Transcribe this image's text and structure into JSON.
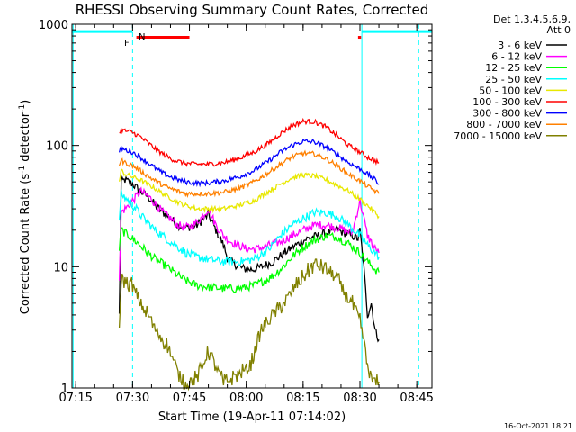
{
  "chart_data": {
    "type": "line",
    "title": "RHESSI Observing Summary Count Rates, Corrected",
    "xlabel": "Start Time (19-Apr-11 07:14:02)",
    "ylabel": "Corrected Count Rate (s⁻¹ detector⁻¹)",
    "ylabel_main": "Corrected Count Rate (s",
    "ylabel_sup1": "-1",
    "ylabel_mid": " detector",
    "ylabel_sup2": "-1",
    "ylabel_end": ")",
    "x_range_minutes": [
      0,
      95
    ],
    "y_scale": "log",
    "ylim": [
      1,
      1000
    ],
    "x_ticks": [
      {
        "label": "07:15",
        "t": 1
      },
      {
        "label": "07:30",
        "t": 16
      },
      {
        "label": "07:45",
        "t": 31
      },
      {
        "label": "08:00",
        "t": 46
      },
      {
        "label": "08:15",
        "t": 61
      },
      {
        "label": "08:30",
        "t": 76
      },
      {
        "label": "08:45",
        "t": 91
      }
    ],
    "y_ticks": [
      {
        "label": "1",
        "v": 1
      },
      {
        "label": "10",
        "v": 10
      },
      {
        "label": "100",
        "v": 100
      },
      {
        "label": "1000",
        "v": 1000
      }
    ],
    "legend_title": [
      "Det 1,3,4,5,6,9,",
      "Att 0"
    ],
    "legend_position": "right",
    "series": [
      {
        "name": "3 - 6 keV",
        "color": "#000000",
        "line_color": "#000000",
        "x": [
          12.5,
          13,
          14,
          15,
          16,
          17,
          18,
          19,
          20,
          21,
          22,
          24,
          26,
          28,
          30,
          33,
          36,
          38,
          40,
          41,
          42,
          44,
          46,
          48,
          50,
          53,
          56,
          59,
          62,
          65,
          67,
          70,
          72,
          74,
          75.5,
          76,
          77,
          78,
          79,
          80,
          81
        ],
        "y": [
          4,
          50,
          52,
          50,
          48,
          45,
          42,
          40,
          38,
          35,
          32,
          28,
          25,
          22,
          21,
          22,
          27,
          20,
          15,
          12,
          11,
          10,
          9.5,
          9.5,
          10,
          11,
          13,
          15,
          17,
          18,
          19,
          20,
          19,
          18,
          17,
          20,
          10,
          4,
          5,
          3,
          2.5
        ]
      },
      {
        "name": "6 - 12 keV",
        "color": "#ff00ff",
        "line_color": "#ff00ff",
        "x": [
          12.5,
          13,
          14,
          15,
          16,
          17,
          18,
          19,
          20,
          21,
          22,
          24,
          26,
          28,
          30,
          32,
          34,
          36,
          38,
          40,
          42,
          44,
          46,
          49,
          52,
          55,
          58,
          61,
          64,
          67,
          70,
          72,
          74,
          76,
          78,
          80,
          81
        ],
        "y": [
          8,
          28,
          30,
          32,
          35,
          38,
          42,
          40,
          38,
          36,
          33,
          28,
          25,
          22,
          21,
          22,
          25,
          30,
          22,
          18,
          16,
          15,
          14,
          14,
          15,
          16,
          18,
          20,
          22,
          22,
          21,
          20,
          19,
          35,
          18,
          14,
          13
        ]
      },
      {
        "name": "12 - 25 keV",
        "color": "#00ff00",
        "line_color": "#00ff00",
        "x": [
          12.5,
          13,
          14,
          15,
          16,
          17,
          18,
          19,
          20,
          22,
          24,
          26,
          28,
          30,
          33,
          36,
          40,
          44,
          48,
          52,
          55,
          58,
          61,
          64,
          67,
          70,
          73,
          76,
          78,
          80,
          81
        ],
        "y": [
          14,
          20,
          19,
          18,
          17,
          16,
          15,
          14,
          13,
          11.5,
          10.5,
          9.5,
          8.5,
          7.7,
          7,
          6.8,
          6.6,
          6.6,
          7,
          8,
          9.5,
          12,
          14.5,
          16.5,
          18,
          17.5,
          15.5,
          13,
          11,
          9.5,
          9
        ]
      },
      {
        "name": "25 - 50 keV",
        "color": "#00ffff",
        "line_color": "#00ffff",
        "x": [
          12.5,
          13,
          14,
          15,
          16,
          17,
          18,
          20,
          22,
          24,
          26,
          28,
          30,
          33,
          36,
          40,
          44,
          48,
          52,
          55,
          58,
          61,
          64,
          67,
          70,
          73,
          76,
          78,
          80,
          81
        ],
        "y": [
          25,
          40,
          37,
          35,
          32,
          30,
          27,
          23,
          20,
          18,
          16,
          14.5,
          13,
          12,
          11.5,
          11,
          11,
          11.5,
          14,
          18,
          22,
          25,
          28,
          28,
          26,
          22,
          18,
          15,
          13,
          12
        ]
      },
      {
        "name": "50 - 100 keV",
        "color": "#e8e800",
        "line_color": "#e8e800",
        "x": [
          12.5,
          13,
          14,
          16,
          18,
          20,
          22,
          24,
          26,
          28,
          30,
          33,
          36,
          40,
          44,
          48,
          52,
          55,
          58,
          61,
          64,
          67,
          70,
          73,
          76,
          78,
          80,
          81
        ],
        "y": [
          50,
          62,
          58,
          55,
          52,
          48,
          44,
          40,
          37,
          34,
          32,
          30,
          30,
          30,
          32,
          35,
          42,
          48,
          54,
          57,
          56,
          52,
          47,
          42,
          36,
          32,
          28,
          26
        ]
      },
      {
        "name": "100 - 300 keV",
        "color": "#ff0000",
        "line_color": "#ff0000",
        "x": [
          12.5,
          13,
          14,
          16,
          18,
          20,
          22,
          24,
          26,
          28,
          30,
          33,
          36,
          40,
          44,
          48,
          52,
          55,
          58,
          61,
          64,
          67,
          70,
          73,
          76,
          78,
          80,
          81
        ],
        "y": [
          125,
          135,
          132,
          128,
          118,
          105,
          94,
          85,
          78,
          74,
          71,
          70,
          70,
          72,
          78,
          88,
          105,
          125,
          145,
          158,
          157,
          142,
          120,
          100,
          88,
          80,
          75,
          72
        ]
      },
      {
        "name": "300 - 800 keV",
        "color": "#0000ff",
        "line_color": "#0000ff",
        "x": [
          12.5,
          13,
          14,
          16,
          18,
          20,
          22,
          24,
          26,
          28,
          30,
          33,
          36,
          40,
          44,
          48,
          52,
          55,
          58,
          61,
          64,
          67,
          70,
          73,
          76,
          78,
          80,
          81
        ],
        "y": [
          88,
          95,
          92,
          88,
          80,
          72,
          65,
          59,
          55,
          52,
          50,
          49,
          49,
          51,
          55,
          62,
          75,
          88,
          100,
          108,
          107,
          97,
          84,
          72,
          64,
          58,
          52,
          48
        ]
      },
      {
        "name": "800 - 7000 keV",
        "color": "#ff8000",
        "line_color": "#ff8000",
        "x": [
          12.5,
          13,
          14,
          16,
          18,
          20,
          22,
          24,
          26,
          28,
          30,
          33,
          36,
          40,
          44,
          48,
          52,
          55,
          58,
          61,
          64,
          67,
          70,
          73,
          76,
          78,
          80,
          81
        ],
        "y": [
          70,
          75,
          72,
          68,
          62,
          56,
          51,
          47,
          44,
          42,
          40,
          40,
          40,
          41,
          44,
          50,
          60,
          70,
          80,
          86,
          85,
          78,
          68,
          58,
          51,
          46,
          42,
          40
        ]
      },
      {
        "name": "7000 - 15000 keV",
        "color": "#808000",
        "line_color": "#808000",
        "x": [
          12.5,
          13,
          14,
          16,
          18,
          20,
          22,
          24,
          26,
          28,
          30,
          33,
          36,
          40,
          44,
          47,
          50,
          53,
          56,
          59,
          62,
          64,
          66,
          68,
          70,
          72,
          74,
          76,
          77,
          78,
          79,
          80,
          81
        ],
        "y": [
          3,
          8,
          7.5,
          7,
          5,
          4,
          3,
          2.5,
          2,
          1.3,
          1.1,
          1.2,
          2,
          1.1,
          1.3,
          1.5,
          3,
          4,
          5,
          7,
          9,
          10.5,
          10,
          9,
          8,
          6,
          5,
          3.5,
          2.5,
          1.5,
          1.2,
          1.1,
          1.1
        ]
      }
    ],
    "flags": [
      {
        "label": "F",
        "color": "#ff0000"
      },
      {
        "label": "N",
        "color": "#00ffff"
      }
    ],
    "flag_bars": [
      {
        "color": "#ff0000",
        "x_start": 17,
        "x_end": 31,
        "y": 780
      },
      {
        "color": "#ff0000",
        "x_start": 75.5,
        "x_end": 76.3,
        "y": 780
      },
      {
        "color": "#00ffff",
        "x_start": 0,
        "x_end": 16,
        "y": 870
      },
      {
        "color": "#00ffff",
        "x_start": 76.5,
        "x_end": 95,
        "y": 870
      }
    ],
    "vlines": [
      {
        "t": 0.3,
        "style": "solid",
        "color": "#00ffff"
      },
      {
        "t": 16,
        "style": "dashed",
        "color": "#00ffff"
      },
      {
        "t": 76.5,
        "style": "solid",
        "color": "#00ffff"
      },
      {
        "t": 91.5,
        "style": "dashed",
        "color": "#00ffff"
      }
    ],
    "footer": "16-Oct-2021 18:21"
  }
}
